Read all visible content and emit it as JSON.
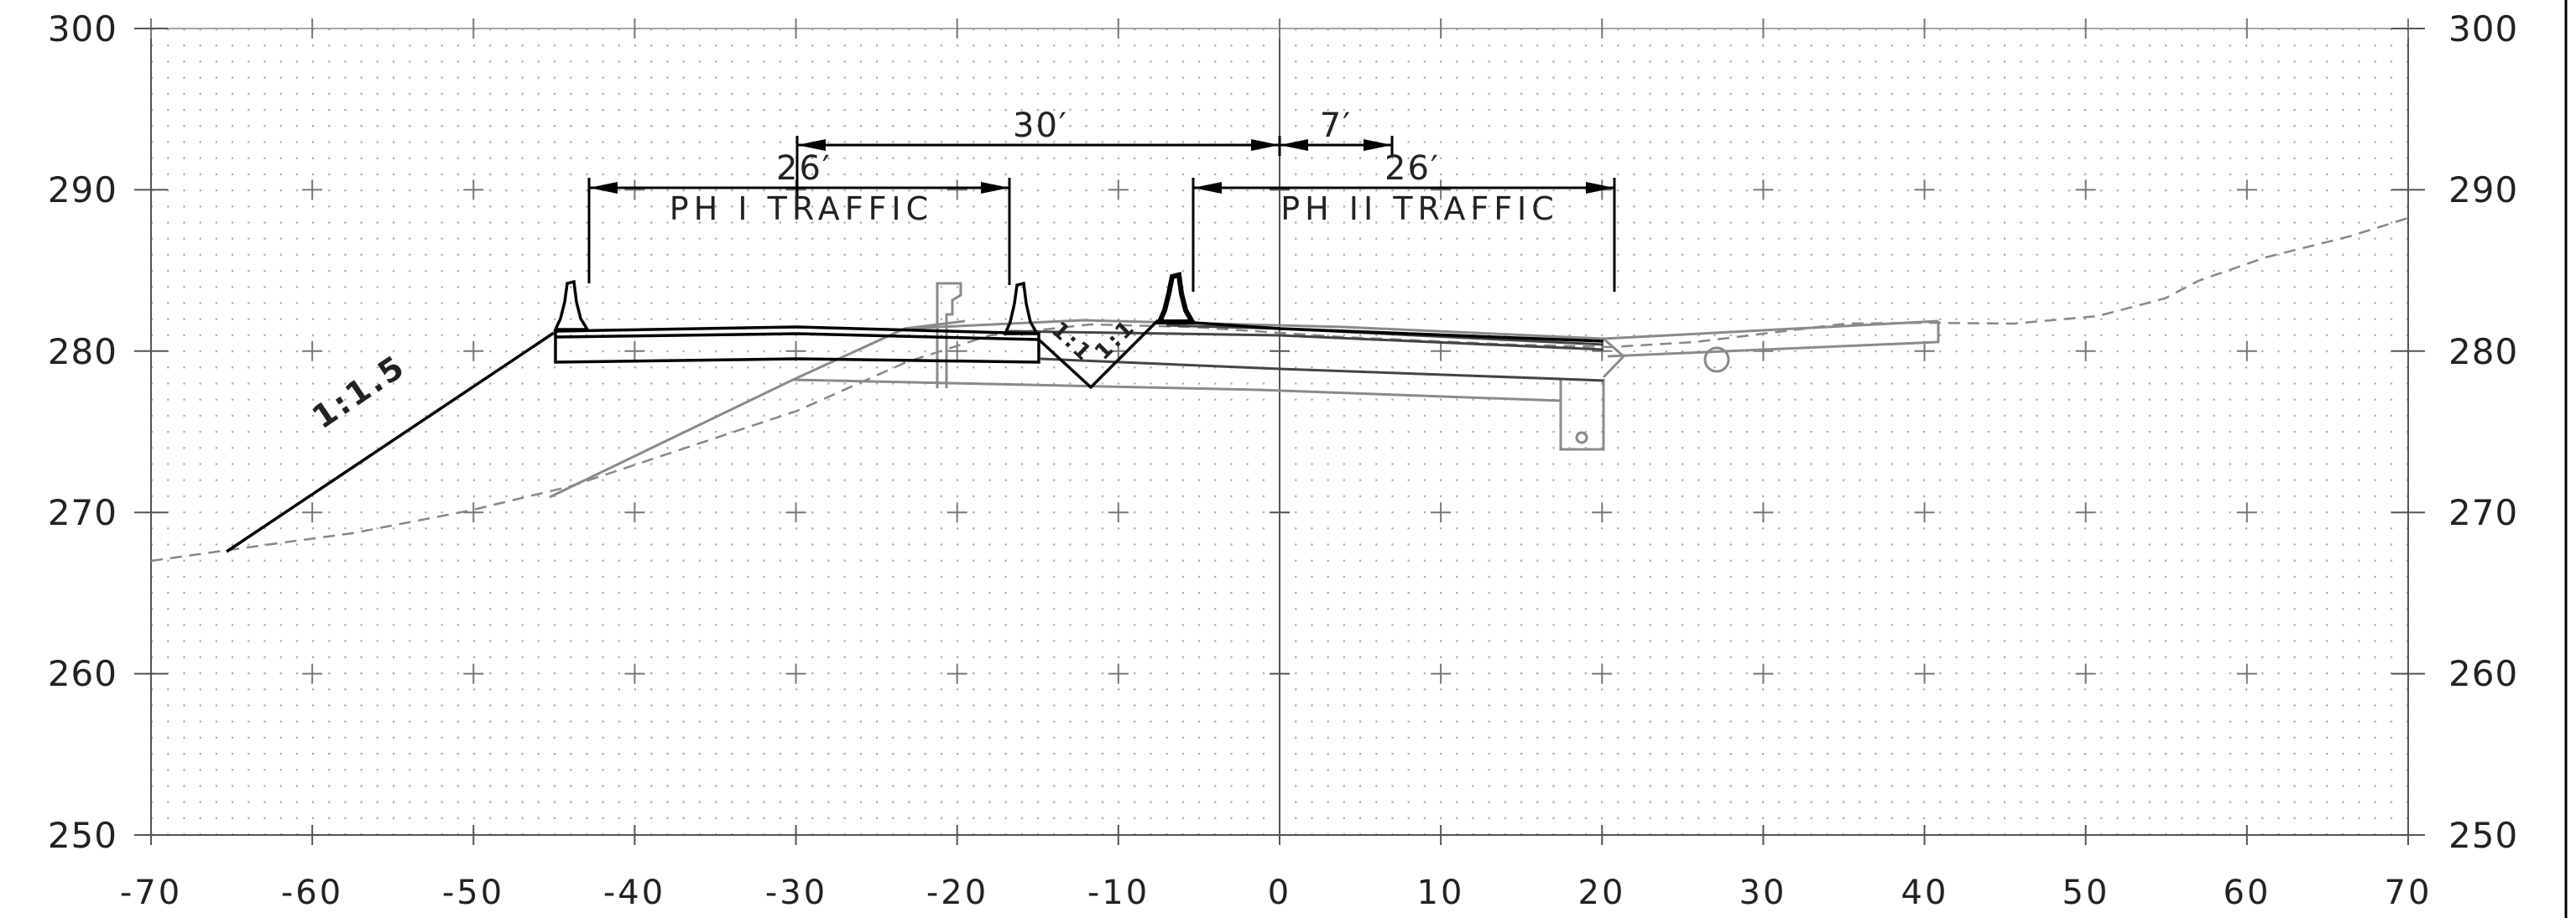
{
  "axes": {
    "x_ticks": [
      "-70",
      "-60",
      "-50",
      "-40",
      "-30",
      "-20",
      "-10",
      "0",
      "10",
      "20",
      "30",
      "40",
      "50",
      "60",
      "70"
    ],
    "y_ticks": [
      "300",
      "290",
      "280",
      "270",
      "260",
      "250"
    ]
  },
  "dimensions": {
    "dim_30": "30′",
    "dim_7": "7′",
    "dim_26_left": "26′",
    "dim_26_right": "26′"
  },
  "labels": {
    "ph1_traffic": "PH I TRAFFIC",
    "ph2_traffic": "PH II TRAFFIC",
    "slope_left": "1:1.5",
    "slope_ditch_a": "1:1",
    "slope_ditch_b": "1:1"
  },
  "colors": {
    "proposed": "#000000",
    "phase_outline": "#444444",
    "existing_structure": "#8a8a8a",
    "existing_ground": "#888888",
    "grid": "#999999"
  },
  "icons": [
    "barrier-icon",
    "barrier-icon",
    "barrier-icon",
    "drainage-pipe-icon"
  ]
}
